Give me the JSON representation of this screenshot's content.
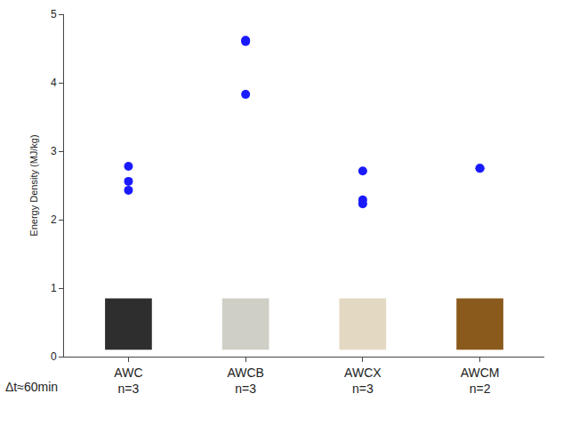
{
  "chart_data": {
    "type": "scatter",
    "y_label": "Energy Density (MJ/kg)",
    "categories": [
      "AWC",
      "AWCB",
      "AWCX",
      "AWCM"
    ],
    "category_notes": [
      "n=3",
      "n=3",
      "n=3",
      "n=2"
    ],
    "values": [
      [
        2.78,
        2.56,
        2.43
      ],
      [
        4.6,
        4.62,
        3.83
      ],
      [
        2.71,
        2.29,
        2.23
      ],
      [
        2.75,
        2.75
      ]
    ],
    "color": "#1a1aff",
    "marker": "circle",
    "note": "Δt≈60min",
    "ylim": [
      0,
      5
    ],
    "yticks": [
      0,
      1,
      2,
      3,
      4,
      5
    ],
    "grid": false
  }
}
